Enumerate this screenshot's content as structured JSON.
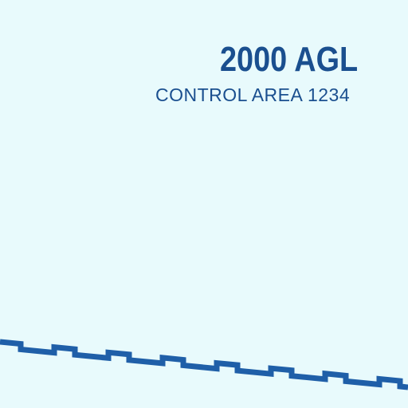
{
  "colors": {
    "background": "#e8fafc",
    "label_text": "#1a4f8f",
    "boundary_line": "#1f5fa8"
  },
  "airspace": {
    "altitude": "2000 AGL",
    "area_name": "CONTROL AREA 1234"
  },
  "boundary": {
    "symbol": "control-area-boundary-toothed-line"
  }
}
